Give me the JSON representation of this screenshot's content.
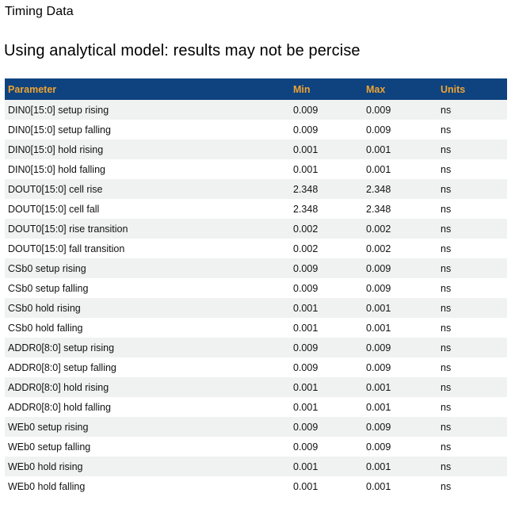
{
  "page": {
    "title": "Timing Data",
    "subtitle": "Using analytical model: results may not be percise"
  },
  "table": {
    "columns": [
      "Parameter",
      "Min",
      "Max",
      "Units"
    ],
    "rows": [
      {
        "parameter": "DIN0[15:0] setup rising",
        "min": "0.009",
        "max": "0.009",
        "units": "ns"
      },
      {
        "parameter": "DIN0[15:0] setup falling",
        "min": "0.009",
        "max": "0.009",
        "units": "ns"
      },
      {
        "parameter": "DIN0[15:0] hold rising",
        "min": "0.001",
        "max": "0.001",
        "units": "ns"
      },
      {
        "parameter": "DIN0[15:0] hold falling",
        "min": "0.001",
        "max": "0.001",
        "units": "ns"
      },
      {
        "parameter": "DOUT0[15:0] cell rise",
        "min": "2.348",
        "max": "2.348",
        "units": "ns"
      },
      {
        "parameter": "DOUT0[15:0] cell fall",
        "min": "2.348",
        "max": "2.348",
        "units": "ns"
      },
      {
        "parameter": "DOUT0[15:0] rise transition",
        "min": "0.002",
        "max": "0.002",
        "units": "ns"
      },
      {
        "parameter": "DOUT0[15:0] fall transition",
        "min": "0.002",
        "max": "0.002",
        "units": "ns"
      },
      {
        "parameter": "CSb0 setup rising",
        "min": "0.009",
        "max": "0.009",
        "units": "ns"
      },
      {
        "parameter": "CSb0 setup falling",
        "min": "0.009",
        "max": "0.009",
        "units": "ns"
      },
      {
        "parameter": "CSb0 hold rising",
        "min": "0.001",
        "max": "0.001",
        "units": "ns"
      },
      {
        "parameter": "CSb0 hold falling",
        "min": "0.001",
        "max": "0.001",
        "units": "ns"
      },
      {
        "parameter": "ADDR0[8:0] setup rising",
        "min": "0.009",
        "max": "0.009",
        "units": "ns"
      },
      {
        "parameter": "ADDR0[8:0] setup falling",
        "min": "0.009",
        "max": "0.009",
        "units": "ns"
      },
      {
        "parameter": "ADDR0[8:0] hold rising",
        "min": "0.001",
        "max": "0.001",
        "units": "ns"
      },
      {
        "parameter": "ADDR0[8:0] hold falling",
        "min": "0.001",
        "max": "0.001",
        "units": "ns"
      },
      {
        "parameter": "WEb0 setup rising",
        "min": "0.009",
        "max": "0.009",
        "units": "ns"
      },
      {
        "parameter": "WEb0 setup falling",
        "min": "0.009",
        "max": "0.009",
        "units": "ns"
      },
      {
        "parameter": "WEb0 hold rising",
        "min": "0.001",
        "max": "0.001",
        "units": "ns"
      },
      {
        "parameter": "WEb0 hold falling",
        "min": "0.001",
        "max": "0.001",
        "units": "ns"
      }
    ]
  },
  "colors": {
    "header_bg": "#0E4380",
    "header_text": "#F0A330",
    "row_alt_bg": "#F0F2F1",
    "row_bg": "#FFFFFF",
    "text": "#111111"
  }
}
